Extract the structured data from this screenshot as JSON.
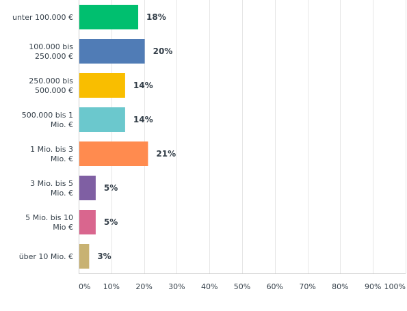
{
  "chart_data": {
    "type": "bar",
    "orientation": "horizontal",
    "title": "",
    "xlabel": "",
    "ylabel": "",
    "xlim": [
      0,
      100
    ],
    "grid": true,
    "categories": [
      [
        "unter 100.000 €"
      ],
      [
        "100.000 bis",
        "250.000 €"
      ],
      [
        "250.000 bis",
        "500.000 €"
      ],
      [
        "500.000 bis 1",
        "Mio. €"
      ],
      [
        "1 Mio. bis 3",
        "Mio. €"
      ],
      [
        "3 Mio. bis 5",
        "Mio. €"
      ],
      [
        "5 Mio. bis 10",
        "Mio €"
      ],
      [
        "über 10 Mio. €"
      ]
    ],
    "values": [
      18,
      20,
      14,
      14,
      21,
      5,
      5,
      3
    ],
    "data_labels": [
      "18%",
      "20%",
      "14%",
      "14%",
      "21%",
      "5%",
      "5%",
      "3%"
    ],
    "colors": [
      "#00bf6f",
      "#507cb6",
      "#f9be00",
      "#6bc8cd",
      "#ff8b4f",
      "#7f5fa3",
      "#d9668e",
      "#c8b272"
    ],
    "x_ticks": [
      "0%",
      "10%",
      "20%",
      "30%",
      "40%",
      "50%",
      "60%",
      "70%",
      "80%",
      "90%",
      "100%"
    ]
  }
}
